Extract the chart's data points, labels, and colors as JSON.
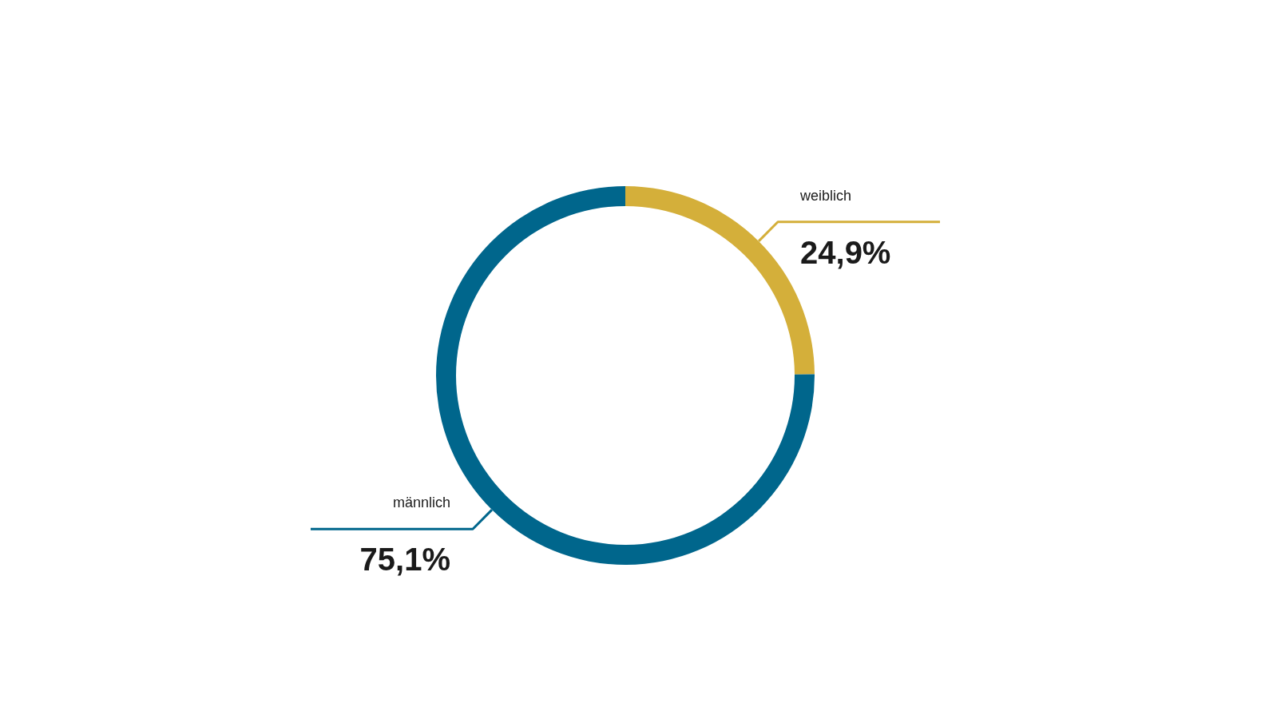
{
  "chart_data": {
    "type": "donut",
    "categories": [
      "weiblich",
      "männlich"
    ],
    "values": [
      24.9,
      75.1
    ],
    "colors": [
      "#d4af3a",
      "#00668c"
    ],
    "value_labels": [
      "24,9%",
      "75,1%"
    ]
  }
}
